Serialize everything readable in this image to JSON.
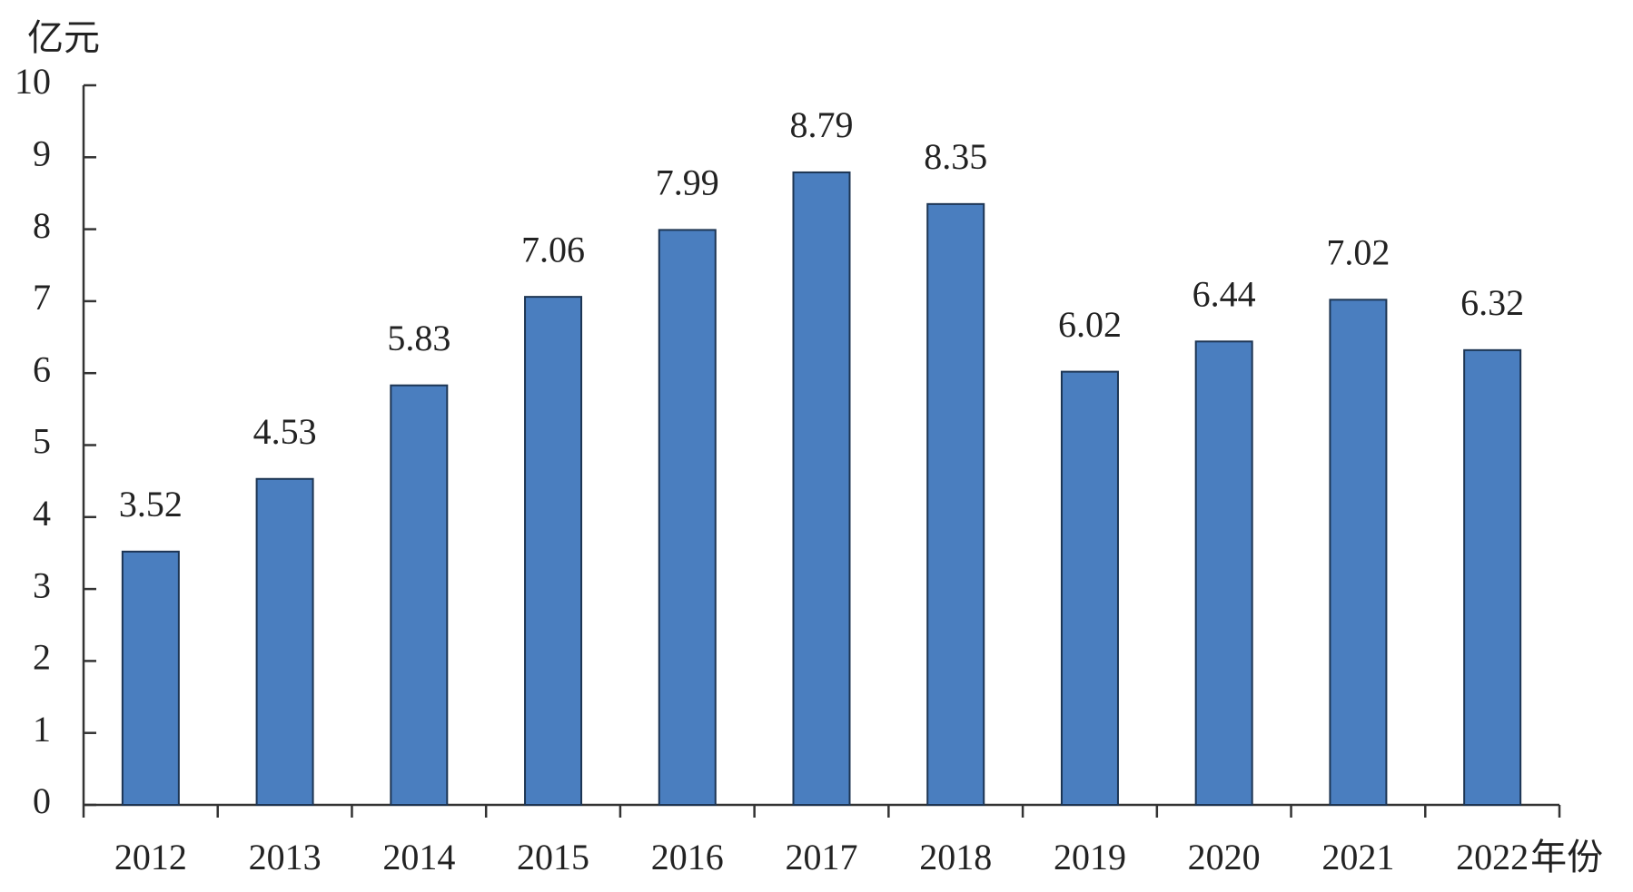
{
  "chart_data": {
    "type": "bar",
    "y_label": "亿元",
    "x_label": "年份",
    "categories": [
      "2012",
      "2013",
      "2014",
      "2015",
      "2016",
      "2017",
      "2018",
      "2019",
      "2020",
      "2021",
      "2022"
    ],
    "values": [
      3.52,
      4.53,
      5.83,
      7.06,
      7.99,
      8.79,
      8.35,
      6.02,
      6.44,
      7.02,
      6.32
    ],
    "color": "#4a7ebf",
    "ylim": [
      0,
      10
    ],
    "yticks": [
      0,
      1,
      2,
      3,
      4,
      5,
      6,
      7,
      8,
      9,
      10
    ]
  }
}
